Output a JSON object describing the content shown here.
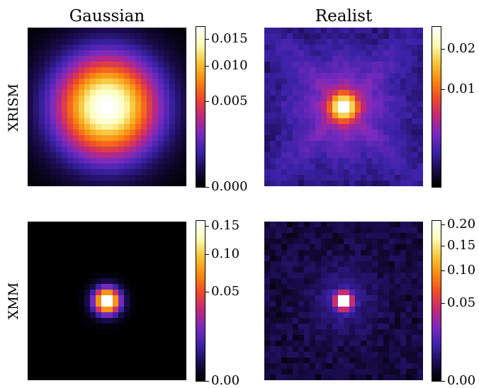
{
  "colormap": [
    "#000000",
    "#1a0c4e",
    "#3b22a8",
    "#7a2ac0",
    "#c2287a",
    "#ee4a2a",
    "#fb8a0e",
    "#f6c53a",
    "#fcfcb6",
    "#ffffff"
  ],
  "chart_data": [
    {
      "type": "heatmap",
      "title": "Gaussian",
      "row_label": "XRISM",
      "psf": "gaussian-broad",
      "colorbar": {
        "ticks": [
          "0.000",
          "0.005",
          "0.010",
          "0.015"
        ],
        "tick_values": [
          0.0,
          0.005,
          0.01,
          0.015
        ],
        "range": [
          0.0,
          0.0175
        ],
        "scale": "sqrt"
      }
    },
    {
      "type": "heatmap",
      "title": "Realist",
      "row_label": "",
      "psf": "realistic-broad",
      "colorbar": {
        "ticks": [
          "0.01",
          "0.02"
        ],
        "tick_values": [
          0.01,
          0.02
        ],
        "range": [
          0.0,
          0.027
        ],
        "scale": "sqrt"
      }
    },
    {
      "type": "heatmap",
      "title": "",
      "row_label": "XMM",
      "psf": "gaussian-narrow",
      "colorbar": {
        "ticks": [
          "0.00",
          "0.05",
          "0.10",
          "0.15"
        ],
        "tick_values": [
          0.0,
          0.05,
          0.1,
          0.15
        ],
        "range": [
          0.0,
          0.16
        ],
        "scale": "sqrt"
      }
    },
    {
      "type": "heatmap",
      "title": "",
      "row_label": "",
      "psf": "realistic-narrow",
      "colorbar": {
        "ticks": [
          "0.00",
          "0.05",
          "0.10",
          "0.15",
          "0.20"
        ],
        "tick_values": [
          0.0,
          0.05,
          0.1,
          0.15,
          0.2
        ],
        "range": [
          0.0,
          0.21
        ],
        "scale": "sqrt"
      }
    }
  ]
}
